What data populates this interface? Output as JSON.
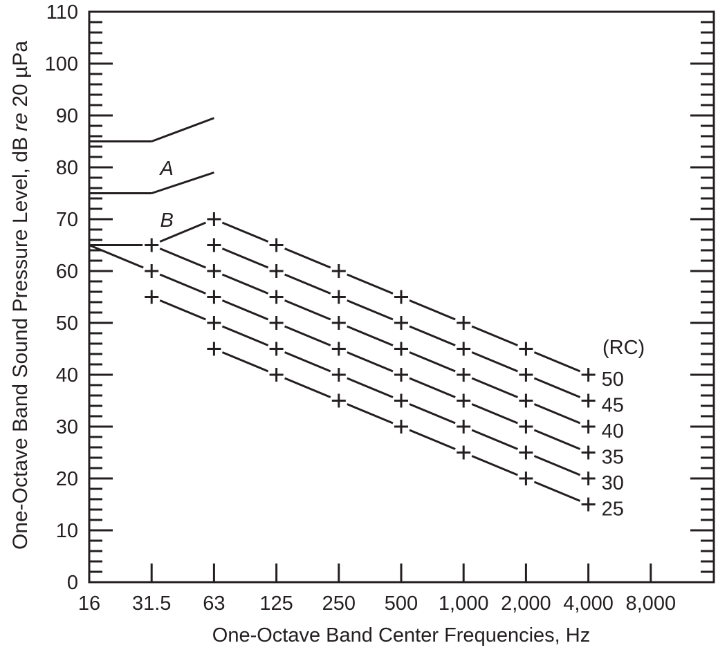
{
  "chart_data": {
    "type": "line",
    "title": "",
    "xlabel": "One-Octave Band Center Frequencies, Hz",
    "ylabel_parts": [
      "One-Octave Band Sound Pressure Level, dB ",
      "re",
      " 20 µPa"
    ],
    "ylabel": "One-Octave Band Sound Pressure Level, dB re 20 µPa",
    "x_scale": "log2 (octave bands)",
    "categories": [
      "16",
      "31.5",
      "63",
      "125",
      "250",
      "500",
      "1,000",
      "2,000",
      "4,000",
      "8,000"
    ],
    "ylim": [
      0,
      110
    ],
    "y_ticks": [
      0,
      10,
      20,
      30,
      40,
      50,
      60,
      70,
      80,
      90,
      100,
      110
    ],
    "y_minor_step": 2,
    "grid": false,
    "legend_title": "(RC)",
    "legend_position": "right, at end of each line",
    "series": [
      {
        "name": "50",
        "label": "50",
        "points": [
          [
            "31.5",
            65
          ],
          [
            "63",
            70
          ],
          [
            "125",
            65
          ],
          [
            "250",
            60
          ],
          [
            "500",
            55
          ],
          [
            "1,000",
            50
          ],
          [
            "2,000",
            45
          ],
          [
            "4,000",
            40
          ]
        ]
      },
      {
        "name": "45",
        "label": "45",
        "points": [
          [
            "63",
            65
          ],
          [
            "125",
            60
          ],
          [
            "250",
            55
          ],
          [
            "500",
            50
          ],
          [
            "1,000",
            45
          ],
          [
            "2,000",
            40
          ],
          [
            "4,000",
            35
          ]
        ]
      },
      {
        "name": "40",
        "label": "40",
        "points": [
          [
            "31.5",
            65
          ],
          [
            "63",
            60
          ],
          [
            "125",
            55
          ],
          [
            "250",
            50
          ],
          [
            "500",
            45
          ],
          [
            "1,000",
            40
          ],
          [
            "2,000",
            35
          ],
          [
            "4,000",
            30
          ]
        ]
      },
      {
        "name": "35",
        "label": "35",
        "points": [
          [
            "16",
            65
          ],
          [
            "31.5",
            60
          ],
          [
            "63",
            55
          ],
          [
            "125",
            50
          ],
          [
            "250",
            45
          ],
          [
            "500",
            40
          ],
          [
            "1,000",
            35
          ],
          [
            "2,000",
            30
          ],
          [
            "4,000",
            25
          ]
        ]
      },
      {
        "name": "30",
        "label": "30",
        "points": [
          [
            "31.5",
            55
          ],
          [
            "63",
            50
          ],
          [
            "125",
            45
          ],
          [
            "250",
            40
          ],
          [
            "500",
            35
          ],
          [
            "1,000",
            30
          ],
          [
            "2,000",
            25
          ],
          [
            "4,000",
            20
          ]
        ]
      },
      {
        "name": "25",
        "label": "25",
        "points": [
          [
            "63",
            45
          ],
          [
            "125",
            40
          ],
          [
            "250",
            35
          ],
          [
            "500",
            30
          ],
          [
            "1,000",
            25
          ],
          [
            "2,000",
            20
          ],
          [
            "4,000",
            15
          ]
        ]
      }
    ],
    "boundaries": [
      {
        "name": "region-A-upper",
        "points": [
          [
            "16",
            85
          ],
          [
            "31.5",
            85
          ],
          [
            "63",
            89.5
          ]
        ]
      },
      {
        "name": "region-B-upper",
        "points": [
          [
            "16",
            75
          ],
          [
            "31.5",
            75
          ],
          [
            "63",
            79
          ]
        ]
      },
      {
        "name": "region-B-lower",
        "points": [
          [
            "16",
            65
          ],
          [
            "31.5",
            65
          ]
        ]
      }
    ],
    "markers": [
      [
        "31.5",
        65
      ],
      [
        "31.5",
        60
      ],
      [
        "31.5",
        55
      ],
      [
        "63",
        70
      ],
      [
        "63",
        65
      ],
      [
        "63",
        60
      ],
      [
        "63",
        55
      ],
      [
        "63",
        50
      ],
      [
        "63",
        45
      ],
      [
        "125",
        65
      ],
      [
        "125",
        60
      ],
      [
        "125",
        55
      ],
      [
        "125",
        50
      ],
      [
        "125",
        45
      ],
      [
        "125",
        40
      ],
      [
        "250",
        60
      ],
      [
        "250",
        55
      ],
      [
        "250",
        50
      ],
      [
        "250",
        45
      ],
      [
        "250",
        40
      ],
      [
        "250",
        35
      ],
      [
        "500",
        55
      ],
      [
        "500",
        50
      ],
      [
        "500",
        45
      ],
      [
        "500",
        40
      ],
      [
        "500",
        35
      ],
      [
        "500",
        30
      ],
      [
        "1,000",
        50
      ],
      [
        "1,000",
        45
      ],
      [
        "1,000",
        40
      ],
      [
        "1,000",
        35
      ],
      [
        "1,000",
        30
      ],
      [
        "1,000",
        25
      ],
      [
        "2,000",
        45
      ],
      [
        "2,000",
        40
      ],
      [
        "2,000",
        35
      ],
      [
        "2,000",
        30
      ],
      [
        "2,000",
        25
      ],
      [
        "2,000",
        20
      ],
      [
        "4,000",
        40
      ],
      [
        "4,000",
        35
      ],
      [
        "4,000",
        30
      ],
      [
        "4,000",
        25
      ],
      [
        "4,000",
        20
      ],
      [
        "4,000",
        15
      ]
    ],
    "annotations": [
      {
        "text": "A",
        "x": "31.5",
        "y": 80,
        "style": "italic"
      },
      {
        "text": "B",
        "x": "31.5",
        "y": 70,
        "style": "italic"
      }
    ]
  },
  "style": {
    "ink": "#231f20",
    "background": "#ffffff"
  }
}
